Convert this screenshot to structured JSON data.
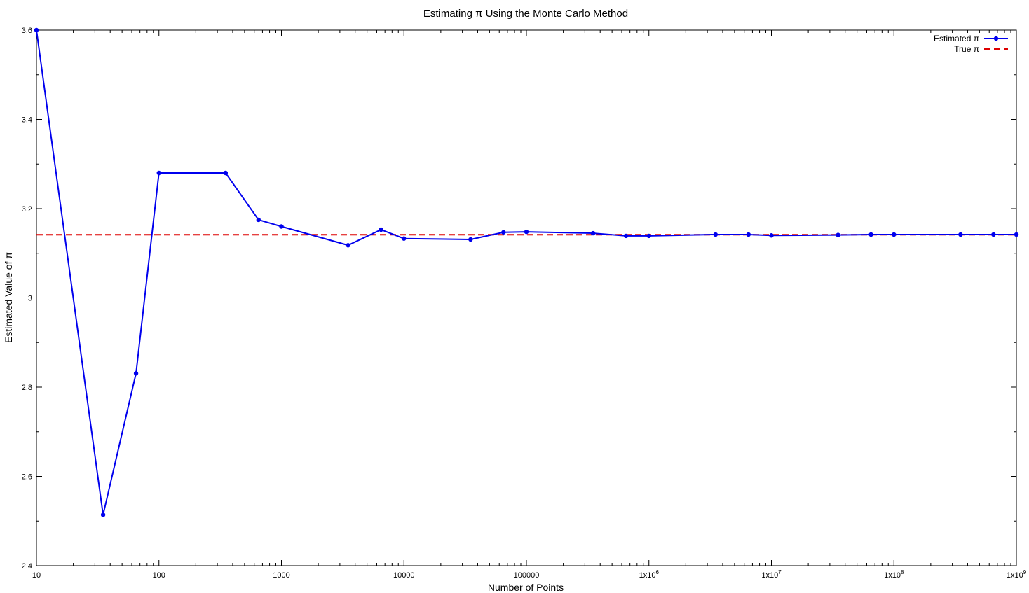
{
  "chart_data": {
    "type": "line",
    "title": "Estimating π Using the Monte Carlo Method",
    "xlabel": "Number of Points",
    "ylabel": "Estimated Value of π",
    "x_scale": "log10",
    "xlim": [
      10,
      1000000000
    ],
    "ylim": [
      2.4,
      3.6
    ],
    "grid": false,
    "legend_position": "top-right",
    "x_ticks": [
      {
        "value": 10,
        "label": "10"
      },
      {
        "value": 100,
        "label": "100"
      },
      {
        "value": 1000,
        "label": "1000"
      },
      {
        "value": 10000,
        "label": "10000"
      },
      {
        "value": 100000,
        "label": "100000"
      },
      {
        "value": 1000000,
        "label": "1x10",
        "exp": "6"
      },
      {
        "value": 10000000,
        "label": "1x10",
        "exp": "7"
      },
      {
        "value": 100000000,
        "label": "1x10",
        "exp": "8"
      },
      {
        "value": 1000000000,
        "label": "1x10",
        "exp": "9"
      }
    ],
    "y_ticks": [
      {
        "value": 2.4,
        "label": "2.4"
      },
      {
        "value": 2.6,
        "label": "2.6"
      },
      {
        "value": 2.8,
        "label": "2.8"
      },
      {
        "value": 3.0,
        "label": "3"
      },
      {
        "value": 3.2,
        "label": "3.2"
      },
      {
        "value": 3.4,
        "label": "3.4"
      },
      {
        "value": 3.6,
        "label": "3.6"
      }
    ],
    "series": [
      {
        "name": "Estimated π",
        "color": "#0000ee",
        "style": "line-points",
        "x": [
          10,
          35,
          65,
          100,
          350,
          650,
          1000,
          3500,
          6500,
          10000,
          35000,
          65000,
          100000,
          350000,
          650000,
          1000000,
          3500000,
          6500000,
          10000000,
          35000000,
          65000000,
          100000000,
          350000000,
          650000000,
          1000000000
        ],
        "y": [
          3.6,
          2.514,
          2.831,
          3.28,
          3.28,
          3.175,
          3.16,
          3.118,
          3.153,
          3.133,
          3.131,
          3.147,
          3.148,
          3.145,
          3.139,
          3.139,
          3.142,
          3.142,
          3.14,
          3.141,
          3.142,
          3.142,
          3.142,
          3.142,
          3.142
        ]
      },
      {
        "name": "True π",
        "color": "#dd0000",
        "style": "dashed",
        "x": [
          10,
          1000000000
        ],
        "y": [
          3.14159,
          3.14159
        ]
      }
    ]
  }
}
